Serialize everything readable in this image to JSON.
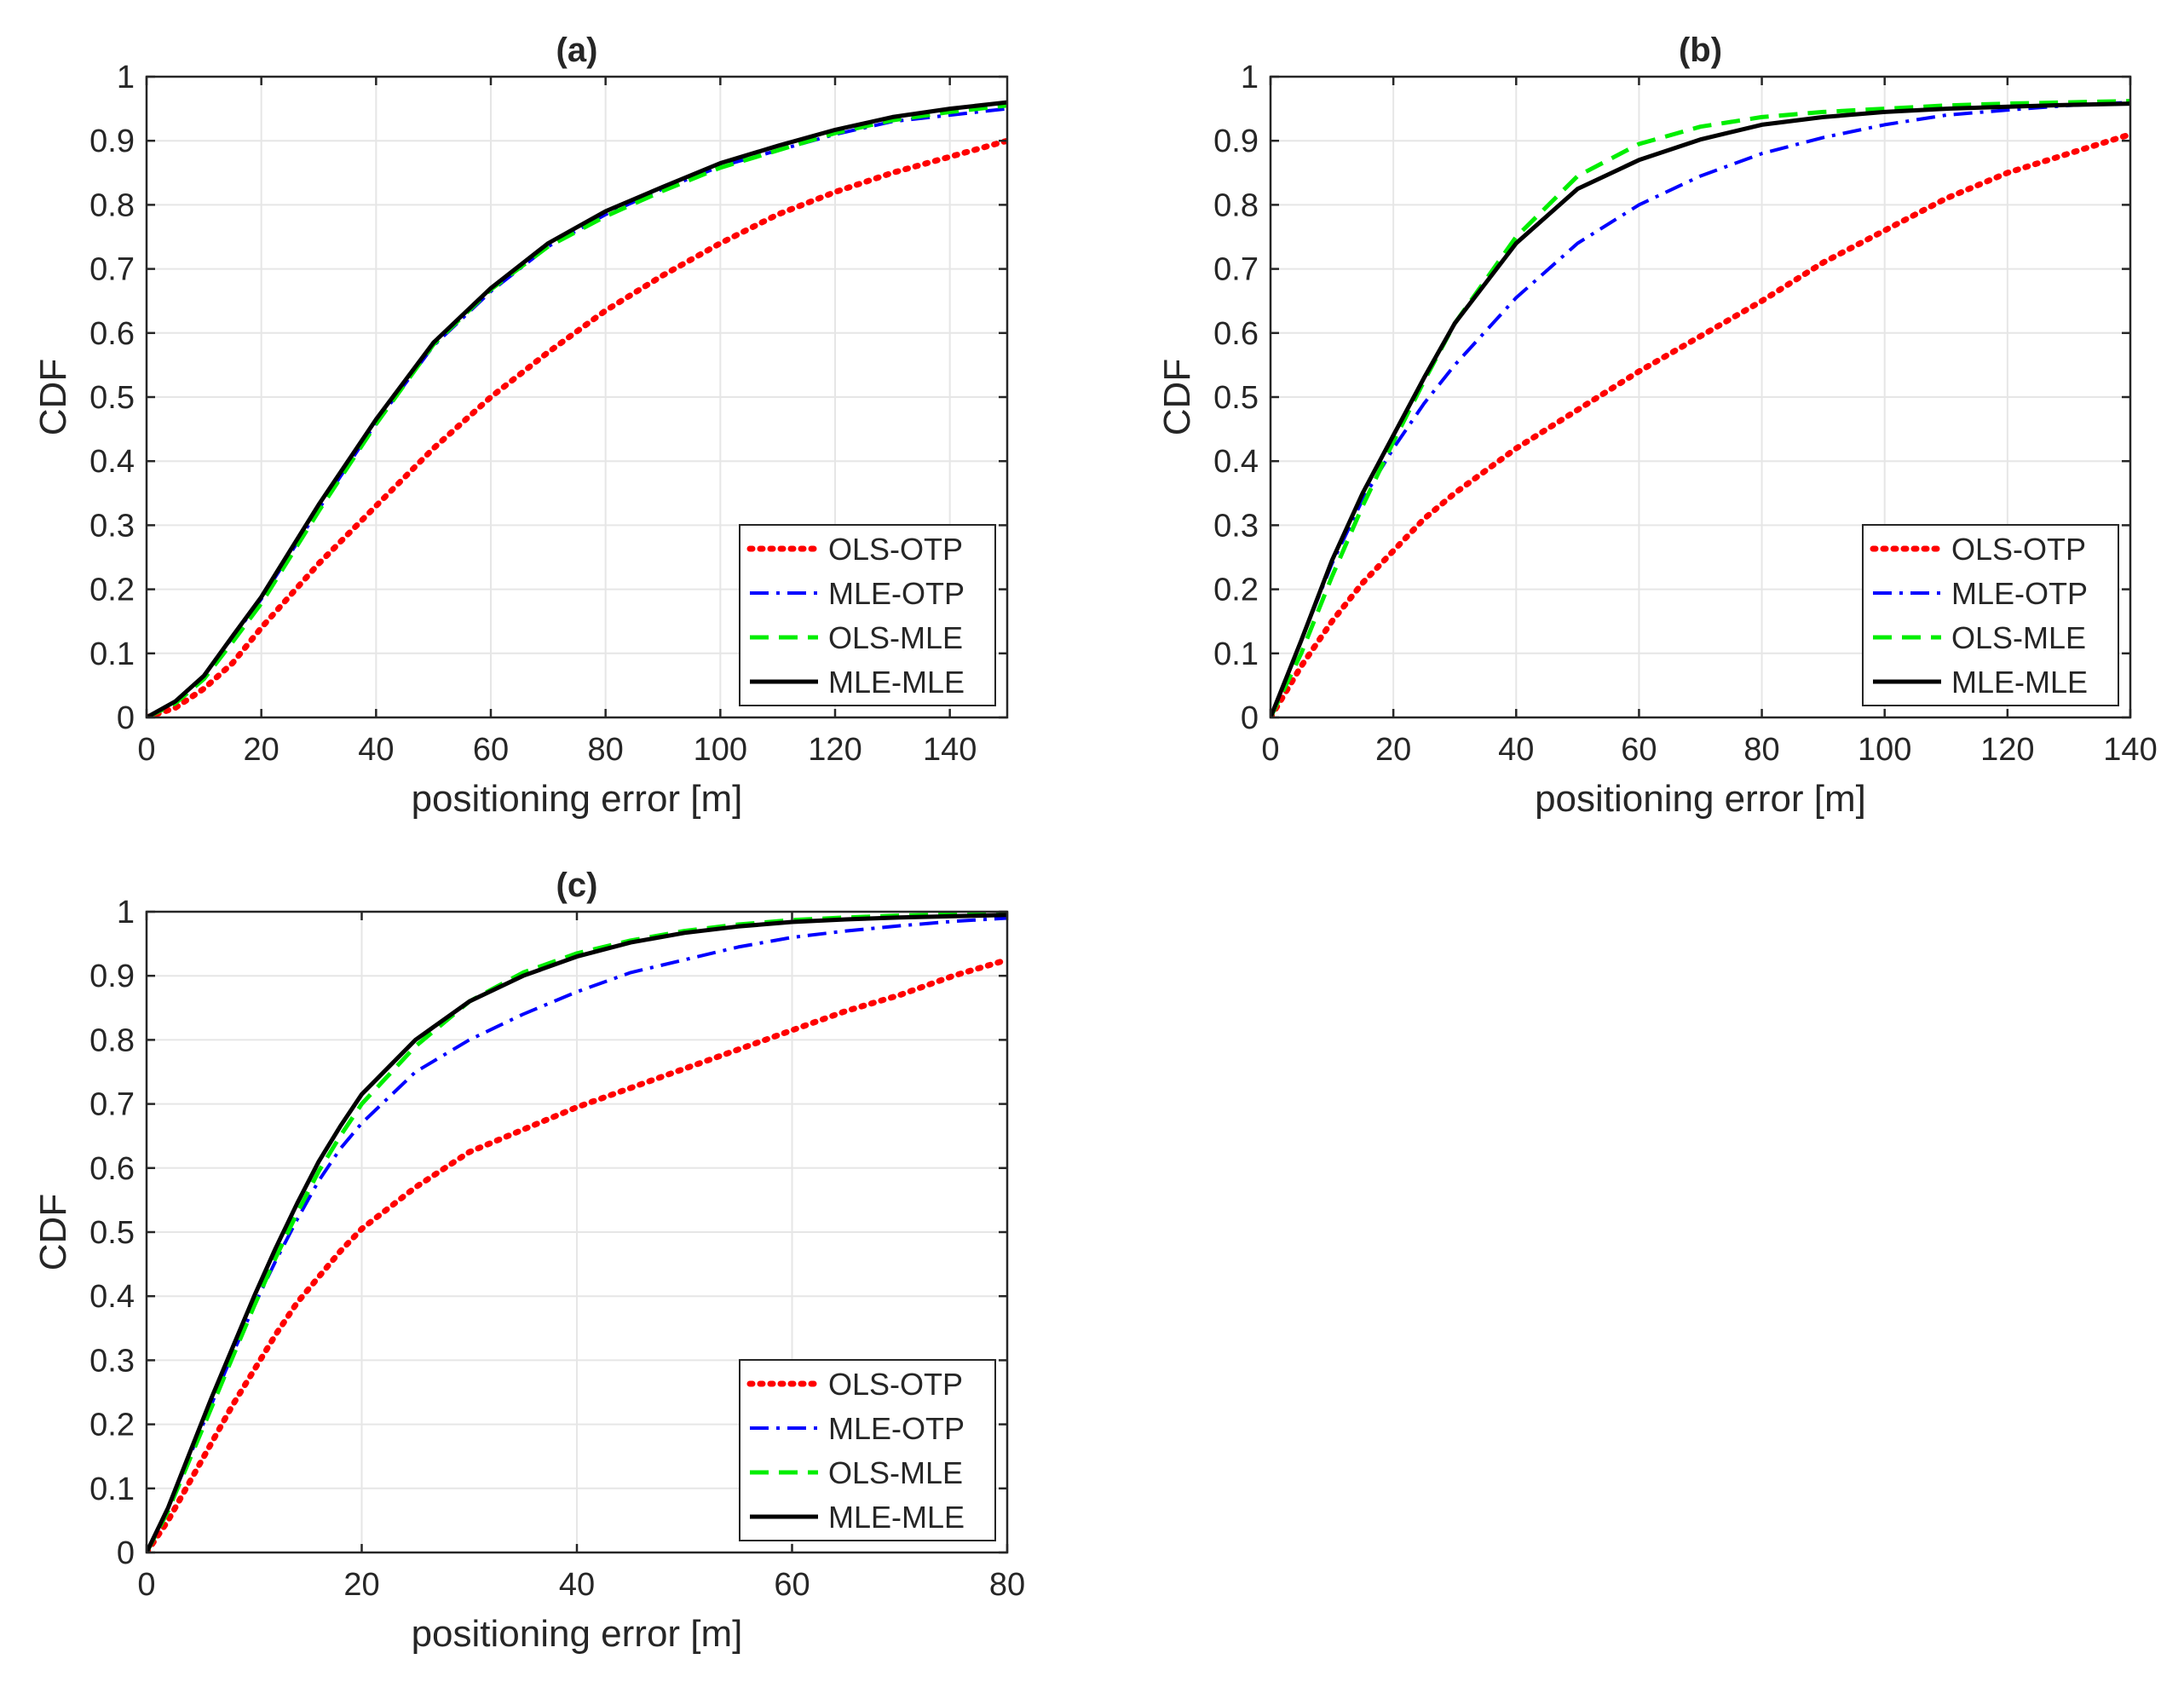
{
  "chart_data": [
    {
      "type": "line",
      "title": "(a)",
      "xlabel": "positioning error [m]",
      "ylabel": "CDF",
      "xlim": [
        0,
        150
      ],
      "ylim": [
        0,
        1
      ],
      "xticks": [
        0,
        20,
        40,
        60,
        80,
        100,
        120,
        140
      ],
      "yticks": [
        0,
        0.1,
        0.2,
        0.3,
        0.4,
        0.5,
        0.6,
        0.7,
        0.8,
        0.9,
        1
      ],
      "grid": true,
      "legend_position": "bottom-right",
      "series": [
        {
          "name": "OLS-OTP",
          "color": "#ff0000",
          "style": "dotted",
          "x": [
            0,
            5,
            10,
            15,
            20,
            25,
            30,
            40,
            50,
            60,
            70,
            80,
            90,
            100,
            110,
            120,
            130,
            140,
            150
          ],
          "y": [
            0,
            0.015,
            0.045,
            0.085,
            0.14,
            0.19,
            0.24,
            0.33,
            0.42,
            0.5,
            0.57,
            0.635,
            0.69,
            0.74,
            0.785,
            0.82,
            0.85,
            0.875,
            0.9
          ]
        },
        {
          "name": "MLE-OTP",
          "color": "#0000ff",
          "style": "dashdot",
          "x": [
            0,
            5,
            10,
            15,
            20,
            25,
            30,
            40,
            50,
            60,
            70,
            80,
            90,
            100,
            110,
            120,
            130,
            140,
            150
          ],
          "y": [
            0,
            0.025,
            0.065,
            0.125,
            0.185,
            0.255,
            0.325,
            0.46,
            0.58,
            0.665,
            0.735,
            0.785,
            0.825,
            0.86,
            0.885,
            0.91,
            0.93,
            0.94,
            0.95
          ]
        },
        {
          "name": "OLS-MLE",
          "color": "#00ee00",
          "style": "dashed",
          "x": [
            0,
            5,
            10,
            15,
            20,
            25,
            30,
            40,
            50,
            60,
            70,
            80,
            90,
            100,
            110,
            120,
            130,
            140,
            150
          ],
          "y": [
            0,
            0.022,
            0.06,
            0.118,
            0.178,
            0.25,
            0.322,
            0.458,
            0.582,
            0.668,
            0.735,
            0.782,
            0.822,
            0.858,
            0.885,
            0.912,
            0.932,
            0.945,
            0.955
          ]
        },
        {
          "name": "MLE-MLE",
          "color": "#000000",
          "style": "solid",
          "x": [
            0,
            5,
            10,
            15,
            20,
            25,
            30,
            40,
            50,
            60,
            70,
            80,
            90,
            100,
            110,
            120,
            130,
            140,
            150
          ],
          "y": [
            0,
            0.025,
            0.065,
            0.127,
            0.188,
            0.26,
            0.332,
            0.465,
            0.585,
            0.67,
            0.74,
            0.79,
            0.828,
            0.865,
            0.892,
            0.917,
            0.937,
            0.95,
            0.96
          ]
        }
      ]
    },
    {
      "type": "line",
      "title": "(b)",
      "xlabel": "positioning error [m]",
      "ylabel": "CDF",
      "xlim": [
        0,
        140
      ],
      "ylim": [
        0,
        1
      ],
      "xticks": [
        0,
        20,
        40,
        60,
        80,
        100,
        120,
        140
      ],
      "yticks": [
        0,
        0.1,
        0.2,
        0.3,
        0.4,
        0.5,
        0.6,
        0.7,
        0.8,
        0.9,
        1
      ],
      "grid": true,
      "legend_position": "bottom-right",
      "series": [
        {
          "name": "OLS-OTP",
          "color": "#ff0000",
          "style": "dotted",
          "x": [
            0,
            5,
            10,
            15,
            20,
            25,
            30,
            40,
            50,
            60,
            70,
            80,
            90,
            100,
            110,
            120,
            130,
            140
          ],
          "y": [
            0,
            0.08,
            0.15,
            0.21,
            0.26,
            0.31,
            0.35,
            0.42,
            0.48,
            0.54,
            0.595,
            0.65,
            0.71,
            0.76,
            0.81,
            0.85,
            0.88,
            0.91
          ]
        },
        {
          "name": "MLE-OTP",
          "color": "#0000ff",
          "style": "dashdot",
          "x": [
            0,
            5,
            10,
            15,
            20,
            25,
            30,
            40,
            50,
            60,
            70,
            80,
            90,
            100,
            110,
            120,
            130,
            140
          ],
          "y": [
            0,
            0.12,
            0.24,
            0.34,
            0.42,
            0.49,
            0.55,
            0.655,
            0.74,
            0.8,
            0.845,
            0.88,
            0.905,
            0.925,
            0.94,
            0.948,
            0.955,
            0.96
          ]
        },
        {
          "name": "OLS-MLE",
          "color": "#00ee00",
          "style": "dashed",
          "x": [
            0,
            5,
            10,
            15,
            20,
            25,
            30,
            40,
            50,
            60,
            70,
            80,
            90,
            100,
            110,
            120,
            130,
            140
          ],
          "y": [
            0,
            0.1,
            0.22,
            0.33,
            0.43,
            0.525,
            0.615,
            0.75,
            0.845,
            0.895,
            0.922,
            0.937,
            0.945,
            0.95,
            0.955,
            0.958,
            0.96,
            0.962
          ]
        },
        {
          "name": "MLE-MLE",
          "color": "#000000",
          "style": "solid",
          "x": [
            0,
            5,
            10,
            15,
            20,
            25,
            30,
            40,
            50,
            60,
            70,
            80,
            90,
            100,
            110,
            120,
            130,
            140
          ],
          "y": [
            0,
            0.12,
            0.245,
            0.35,
            0.44,
            0.53,
            0.615,
            0.74,
            0.825,
            0.87,
            0.902,
            0.925,
            0.937,
            0.945,
            0.95,
            0.953,
            0.956,
            0.958
          ]
        }
      ]
    },
    {
      "type": "line",
      "title": "(c)",
      "xlabel": "positioning error [m]",
      "ylabel": "CDF",
      "xlim": [
        0,
        80
      ],
      "ylim": [
        0,
        1
      ],
      "xticks": [
        0,
        20,
        40,
        60,
        80
      ],
      "yticks": [
        0,
        0.1,
        0.2,
        0.3,
        0.4,
        0.5,
        0.6,
        0.7,
        0.8,
        0.9,
        1
      ],
      "grid": true,
      "legend_position": "bottom-right",
      "series": [
        {
          "name": "OLS-OTP",
          "color": "#ff0000",
          "style": "dotted",
          "x": [
            0,
            2,
            4,
            6,
            8,
            10,
            12,
            14,
            16,
            18,
            20,
            25,
            30,
            35,
            40,
            45,
            50,
            55,
            60,
            65,
            70,
            75,
            80
          ],
          "y": [
            0,
            0.05,
            0.11,
            0.17,
            0.23,
            0.285,
            0.34,
            0.39,
            0.43,
            0.47,
            0.505,
            0.57,
            0.625,
            0.66,
            0.695,
            0.725,
            0.755,
            0.785,
            0.815,
            0.845,
            0.87,
            0.9,
            0.925
          ]
        },
        {
          "name": "MLE-OTP",
          "color": "#0000ff",
          "style": "dashdot",
          "x": [
            0,
            2,
            4,
            6,
            8,
            10,
            12,
            14,
            16,
            18,
            20,
            25,
            30,
            35,
            40,
            45,
            50,
            55,
            60,
            65,
            70,
            75,
            80
          ],
          "y": [
            0,
            0.07,
            0.15,
            0.23,
            0.31,
            0.385,
            0.455,
            0.52,
            0.58,
            0.63,
            0.67,
            0.75,
            0.8,
            0.84,
            0.875,
            0.905,
            0.925,
            0.945,
            0.96,
            0.97,
            0.978,
            0.985,
            0.99
          ]
        },
        {
          "name": "OLS-MLE",
          "color": "#00ee00",
          "style": "dashed",
          "x": [
            0,
            2,
            4,
            6,
            8,
            10,
            12,
            14,
            16,
            18,
            20,
            25,
            30,
            35,
            40,
            45,
            50,
            55,
            60,
            65,
            70,
            75,
            80
          ],
          "y": [
            0,
            0.065,
            0.145,
            0.225,
            0.305,
            0.385,
            0.46,
            0.53,
            0.595,
            0.65,
            0.7,
            0.79,
            0.86,
            0.905,
            0.935,
            0.955,
            0.97,
            0.98,
            0.987,
            0.991,
            0.994,
            0.996,
            0.997
          ]
        },
        {
          "name": "MLE-MLE",
          "color": "#000000",
          "style": "solid",
          "x": [
            0,
            2,
            4,
            6,
            8,
            10,
            12,
            14,
            16,
            18,
            20,
            25,
            30,
            35,
            40,
            45,
            50,
            55,
            60,
            65,
            70,
            75,
            80
          ],
          "y": [
            0,
            0.07,
            0.155,
            0.24,
            0.32,
            0.4,
            0.475,
            0.545,
            0.61,
            0.665,
            0.715,
            0.8,
            0.86,
            0.9,
            0.93,
            0.952,
            0.967,
            0.977,
            0.984,
            0.988,
            0.991,
            0.993,
            0.995
          ]
        }
      ]
    }
  ]
}
